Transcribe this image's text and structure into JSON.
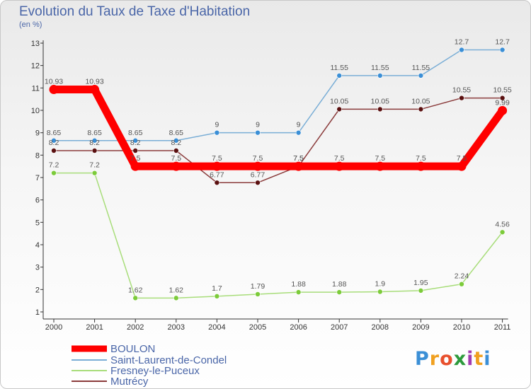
{
  "title": "Evolution du Taux de Taxe d'Habitation",
  "subtitle": "(en %)",
  "logo": {
    "letters": [
      "P",
      "r",
      "o",
      "x",
      "i",
      "t",
      "i"
    ],
    "colors": [
      "#3b8fd6",
      "#f0a020",
      "#e8502d",
      "#2d9a3c",
      "#a23bb0",
      "#f0a020",
      "#3b8fd6"
    ]
  },
  "chart_data": {
    "type": "line",
    "title": "Evolution du Taux de Taxe d'Habitation",
    "ylabel": "(en %)",
    "xlabel": "",
    "x": [
      "2000",
      "2001",
      "2002",
      "2003",
      "2004",
      "2005",
      "2006",
      "2007",
      "2008",
      "2009",
      "2010",
      "2011"
    ],
    "ylim": [
      1,
      13
    ],
    "yticks": [
      "1",
      "2",
      "3",
      "4",
      "5",
      "6",
      "7",
      "8",
      "9",
      "10",
      "11",
      "12",
      "13"
    ],
    "grid": false,
    "legend_position": "bottom-left",
    "series": [
      {
        "name": "BOULON",
        "color": "#ff0000",
        "style": "thick",
        "values": [
          10.93,
          10.93,
          7.5,
          7.5,
          7.5,
          7.5,
          7.5,
          7.5,
          7.5,
          7.5,
          7.5,
          9.99
        ],
        "labels": [
          "10.93",
          "10.93",
          "7.5",
          "7.5",
          "7.5",
          "7.5",
          "7.5",
          "7.5",
          "7.5",
          "7.5",
          "7.5",
          "9.99"
        ]
      },
      {
        "name": "Saint-Laurent-de-Condel",
        "color": "#7aaed6",
        "marker": "#3b8fd6",
        "style": "thin",
        "values": [
          8.65,
          8.65,
          8.65,
          8.65,
          9,
          9,
          9,
          11.55,
          11.55,
          11.55,
          12.7,
          12.7
        ],
        "labels": [
          "8.65",
          "8.65",
          "8.65",
          "8.65",
          "9",
          "9",
          "9",
          "11.55",
          "11.55",
          "11.55",
          "12.7",
          "12.7"
        ]
      },
      {
        "name": "Fresney-le-Puceux",
        "color": "#a8dd7a",
        "marker": "#7ccb3a",
        "style": "thin",
        "values": [
          7.2,
          7.2,
          1.62,
          1.62,
          1.7,
          1.79,
          1.88,
          1.88,
          1.9,
          1.95,
          2.24,
          4.56
        ],
        "labels": [
          "7.2",
          "7.2",
          "1.62",
          "1.62",
          "1.7",
          "1.79",
          "1.88",
          "1.88",
          "1.9",
          "1.95",
          "2.24",
          "4.56"
        ]
      },
      {
        "name": "Mutrécy",
        "color": "#8b3c3c",
        "marker": "#5a1010",
        "style": "thin",
        "values": [
          8.2,
          8.2,
          8.2,
          8.2,
          6.77,
          6.77,
          7.5,
          10.05,
          10.05,
          10.05,
          10.55,
          10.55
        ],
        "labels": [
          "8.2",
          "8.2",
          "8.2",
          "8.2",
          "6.77",
          "6.77",
          "7.5",
          "10.05",
          "10.05",
          "10.05",
          "10.55",
          "10.55"
        ]
      }
    ]
  }
}
